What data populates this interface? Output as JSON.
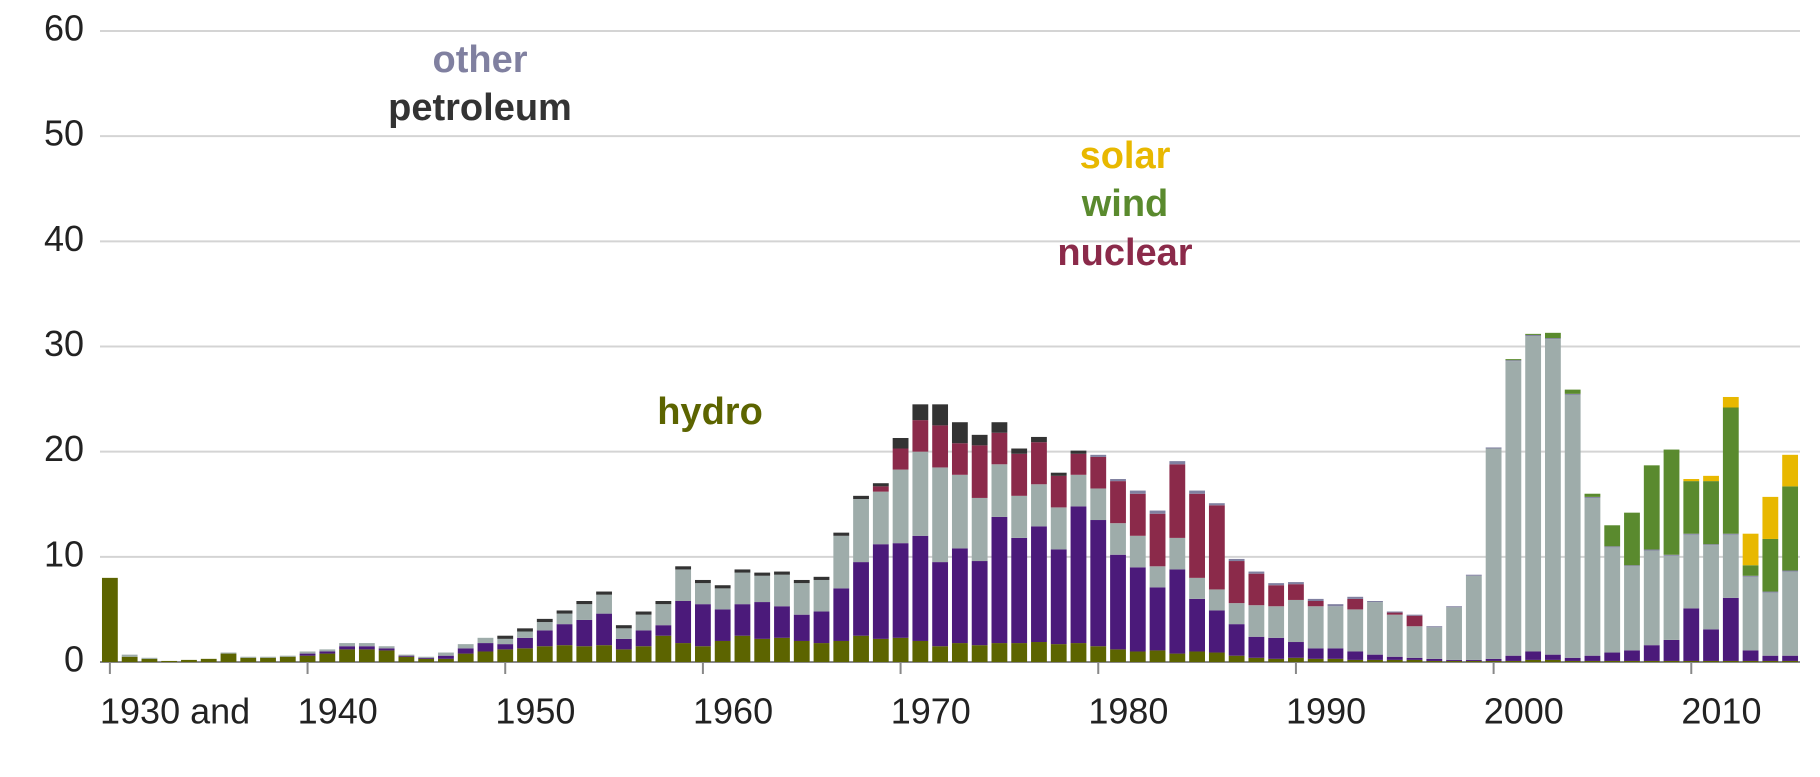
{
  "chart_data": {
    "type": "stacked-bar",
    "categories": [
      "1930 and",
      null,
      null,
      null,
      null,
      null,
      null,
      null,
      null,
      null,
      "1940",
      null,
      null,
      null,
      null,
      null,
      null,
      null,
      null,
      null,
      "1950",
      null,
      null,
      null,
      null,
      null,
      null,
      null,
      null,
      null,
      "1960",
      null,
      null,
      null,
      null,
      null,
      null,
      null,
      null,
      null,
      "1970",
      null,
      null,
      null,
      null,
      null,
      null,
      null,
      null,
      null,
      "1980",
      null,
      null,
      null,
      null,
      null,
      null,
      null,
      null,
      null,
      "1990",
      null,
      null,
      null,
      null,
      null,
      null,
      null,
      null,
      null,
      "2000",
      null,
      null,
      null,
      null,
      null,
      null,
      null,
      null,
      null,
      "2010",
      null,
      null,
      null,
      null,
      null
    ],
    "ylim": [
      0,
      60
    ],
    "yticks": [
      0,
      10,
      20,
      30,
      40,
      50,
      60
    ],
    "grid": true,
    "series": [
      {
        "name": "hydro",
        "color": "#5c6400",
        "values": [
          8,
          0.5,
          0.3,
          0.1,
          0.2,
          0.3,
          0.8,
          0.4,
          0.4,
          0.5,
          0.6,
          0.8,
          1.2,
          1.2,
          1.1,
          0.5,
          0.3,
          0.3,
          0.8,
          1.0,
          1.2,
          1.3,
          1.5,
          1.6,
          1.5,
          1.6,
          1.2,
          1.5,
          2.5,
          1.8,
          1.5,
          2.0,
          2.5,
          2.2,
          2.3,
          2.0,
          1.8,
          2.0,
          2.5,
          2.2,
          2.3,
          2.0,
          1.5,
          1.8,
          1.6,
          1.8,
          1.8,
          1.9,
          1.7,
          1.8,
          1.5,
          1.2,
          1.0,
          1.1,
          0.8,
          1.0,
          0.9,
          0.6,
          0.4,
          0.3,
          0.4,
          0.3,
          0.3,
          0.2,
          0.2,
          0.2,
          0.2,
          0.1,
          0.1,
          0.1,
          0.1,
          0.1,
          0.2,
          0.2,
          0.1,
          0.1,
          0.1,
          0.1,
          0.1,
          0.1,
          0.1,
          0.1,
          0.1,
          0.1,
          0.1,
          0.1
        ]
      },
      {
        "color": "#4b1a7a",
        "values": [
          0,
          0,
          0,
          0,
          0,
          0,
          0,
          0,
          0,
          0,
          0.2,
          0.2,
          0.3,
          0.3,
          0.2,
          0.1,
          0.1,
          0.3,
          0.5,
          0.8,
          0.5,
          1,
          1.5,
          2,
          2.5,
          3,
          1,
          1.5,
          1,
          4,
          4,
          3,
          3,
          3.5,
          3,
          2.5,
          3,
          5,
          7,
          9,
          9,
          10,
          8,
          9,
          8,
          12,
          10,
          11,
          9,
          13,
          12,
          9,
          8,
          6,
          8,
          5,
          4,
          3,
          2,
          2,
          1.5,
          1,
          1,
          0.8,
          0.5,
          0.3,
          0.2,
          0.2,
          0.1,
          0.1,
          0.2,
          0.5,
          0.8,
          0.5,
          0.3,
          0.5,
          0.8,
          1,
          1.5,
          2,
          5,
          3,
          6,
          1,
          0.5,
          0.5
        ]
      },
      {
        "color": "#9eacaa",
        "values": [
          0,
          0.2,
          0.1,
          0,
          0,
          0,
          0.1,
          0.1,
          0.1,
          0.1,
          0.2,
          0.2,
          0.3,
          0.3,
          0.2,
          0.1,
          0.1,
          0.3,
          0.4,
          0.5,
          0.5,
          0.6,
          0.8,
          1,
          1.5,
          1.8,
          1,
          1.5,
          2,
          3,
          2,
          2,
          3,
          2.5,
          3,
          3,
          3,
          5,
          6,
          5,
          7,
          8,
          9,
          7,
          6,
          5,
          4,
          4,
          4,
          3,
          3,
          3,
          3,
          2,
          3,
          2,
          2,
          2,
          3,
          3,
          4,
          4,
          4,
          4,
          5,
          4,
          3,
          3,
          5,
          8,
          20,
          28,
          30,
          30,
          25,
          15,
          10,
          8,
          9,
          8,
          7,
          8,
          6,
          7,
          6,
          8
        ]
      },
      {
        "name": "nuclear",
        "color": "#8b2a4a",
        "values": [
          0,
          0,
          0,
          0,
          0,
          0,
          0,
          0,
          0,
          0,
          0,
          0,
          0,
          0,
          0,
          0,
          0,
          0,
          0,
          0,
          0,
          0,
          0,
          0,
          0,
          0,
          0,
          0,
          0,
          0,
          0,
          0,
          0,
          0,
          0,
          0,
          0,
          0,
          0,
          0.5,
          2,
          3,
          4,
          3,
          5,
          3,
          4,
          4,
          3,
          2,
          3,
          4,
          4,
          5,
          7,
          8,
          8,
          4,
          3,
          2,
          1.5,
          0.5,
          0,
          1,
          0,
          0.2,
          1,
          0,
          0,
          0,
          0,
          0,
          0,
          0,
          0,
          0,
          0,
          0,
          0,
          0,
          0,
          0,
          0,
          0,
          0,
          0
        ]
      },
      {
        "name": "petroleum",
        "color": "#333333",
        "values": [
          0,
          0,
          0,
          0,
          0,
          0,
          0,
          0,
          0,
          0,
          0,
          0,
          0,
          0,
          0,
          0,
          0,
          0,
          0,
          0,
          0.3,
          0.3,
          0.3,
          0.3,
          0.3,
          0.3,
          0.3,
          0.3,
          0.3,
          0.3,
          0.3,
          0.3,
          0.3,
          0.3,
          0.3,
          0.3,
          0.3,
          0.3,
          0.3,
          0.3,
          1,
          1.5,
          2,
          2,
          1,
          1,
          0.5,
          0.5,
          0.3,
          0.3,
          0,
          0,
          0,
          0,
          0,
          0,
          0,
          0,
          0,
          0,
          0,
          0,
          0,
          0,
          0,
          0,
          0,
          0,
          0,
          0,
          0,
          0,
          0,
          0,
          0,
          0,
          0,
          0,
          0,
          0,
          0,
          0,
          0,
          0,
          0,
          0
        ]
      },
      {
        "name": "other",
        "color": "#8080a0",
        "values": [
          0,
          0,
          0,
          0,
          0,
          0,
          0,
          0,
          0,
          0,
          0,
          0,
          0,
          0,
          0,
          0,
          0,
          0,
          0,
          0,
          0,
          0,
          0,
          0,
          0,
          0,
          0,
          0,
          0,
          0,
          0,
          0,
          0,
          0,
          0,
          0,
          0,
          0,
          0,
          0,
          0,
          0,
          0,
          0,
          0,
          0,
          0,
          0,
          0,
          0,
          0.2,
          0.2,
          0.3,
          0.3,
          0.3,
          0.3,
          0.2,
          0.2,
          0.2,
          0.2,
          0.2,
          0.2,
          0.2,
          0.2,
          0.1,
          0.1,
          0.1,
          0.1,
          0.1,
          0.1,
          0.1,
          0.1,
          0.1,
          0.1,
          0.1,
          0.1,
          0.1,
          0.1,
          0.1,
          0.1,
          0.1,
          0.1,
          0.1,
          0.1,
          0.1,
          0.1
        ]
      },
      {
        "name": "wind",
        "color": "#5a8a2e",
        "values": [
          0,
          0,
          0,
          0,
          0,
          0,
          0,
          0,
          0,
          0,
          0,
          0,
          0,
          0,
          0,
          0,
          0,
          0,
          0,
          0,
          0,
          0,
          0,
          0,
          0,
          0,
          0,
          0,
          0,
          0,
          0,
          0,
          0,
          0,
          0,
          0,
          0,
          0,
          0,
          0,
          0,
          0,
          0,
          0,
          0,
          0,
          0,
          0,
          0,
          0,
          0,
          0,
          0,
          0,
          0,
          0,
          0,
          0,
          0,
          0,
          0,
          0,
          0,
          0,
          0,
          0,
          0,
          0,
          0,
          0,
          0,
          0.1,
          0.1,
          0.5,
          0.4,
          0.3,
          2,
          5,
          8,
          10,
          5,
          6,
          12,
          1,
          5,
          8
        ]
      },
      {
        "name": "solar",
        "color": "#e8b800",
        "values": [
          0,
          0,
          0,
          0,
          0,
          0,
          0,
          0,
          0,
          0,
          0,
          0,
          0,
          0,
          0,
          0,
          0,
          0,
          0,
          0,
          0,
          0,
          0,
          0,
          0,
          0,
          0,
          0,
          0,
          0,
          0,
          0,
          0,
          0,
          0,
          0,
          0,
          0,
          0,
          0,
          0,
          0,
          0,
          0,
          0,
          0,
          0,
          0,
          0,
          0,
          0,
          0,
          0,
          0,
          0,
          0,
          0,
          0,
          0,
          0,
          0,
          0,
          0,
          0,
          0,
          0,
          0,
          0,
          0,
          0,
          0,
          0,
          0,
          0,
          0,
          0,
          0,
          0,
          0,
          0,
          0.2,
          0.5,
          1,
          3,
          4,
          3
        ]
      }
    ]
  }
}
